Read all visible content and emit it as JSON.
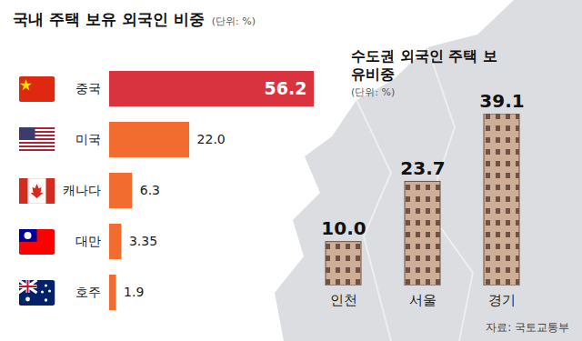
{
  "chart_data": [
    {
      "type": "bar",
      "orientation": "horizontal",
      "title": "국내 주택 보유 외국인 비중",
      "subtitle": "(단위: %)",
      "categories": [
        "중국",
        "미국",
        "캐나다",
        "대만",
        "호주"
      ],
      "values": [
        56.2,
        22.0,
        6.3,
        3.35,
        1.9
      ],
      "value_labels": [
        "56.2",
        "22.0",
        "6.3",
        "3.35",
        "1.9"
      ],
      "colors": [
        "#d9333f",
        "#f26b2f",
        "#f26b2f",
        "#f26b2f",
        "#f26b2f"
      ],
      "xlim": [
        0,
        56.2
      ],
      "data_labels": true,
      "tick_labels": "y",
      "grid": false
    },
    {
      "type": "bar",
      "title": "수도권 외국인 주택 보유비중",
      "subtitle": "(단위: %)",
      "categories": [
        "인천",
        "서울",
        "경기"
      ],
      "values": [
        10.0,
        23.7,
        39.1
      ],
      "value_labels": [
        "10.0",
        "23.7",
        "39.1"
      ],
      "color": "#cfae98",
      "ylim": [
        0,
        39.1
      ],
      "data_labels": true,
      "tick_labels": "x",
      "grid": false,
      "caption": "자료: 국토교통부"
    }
  ]
}
